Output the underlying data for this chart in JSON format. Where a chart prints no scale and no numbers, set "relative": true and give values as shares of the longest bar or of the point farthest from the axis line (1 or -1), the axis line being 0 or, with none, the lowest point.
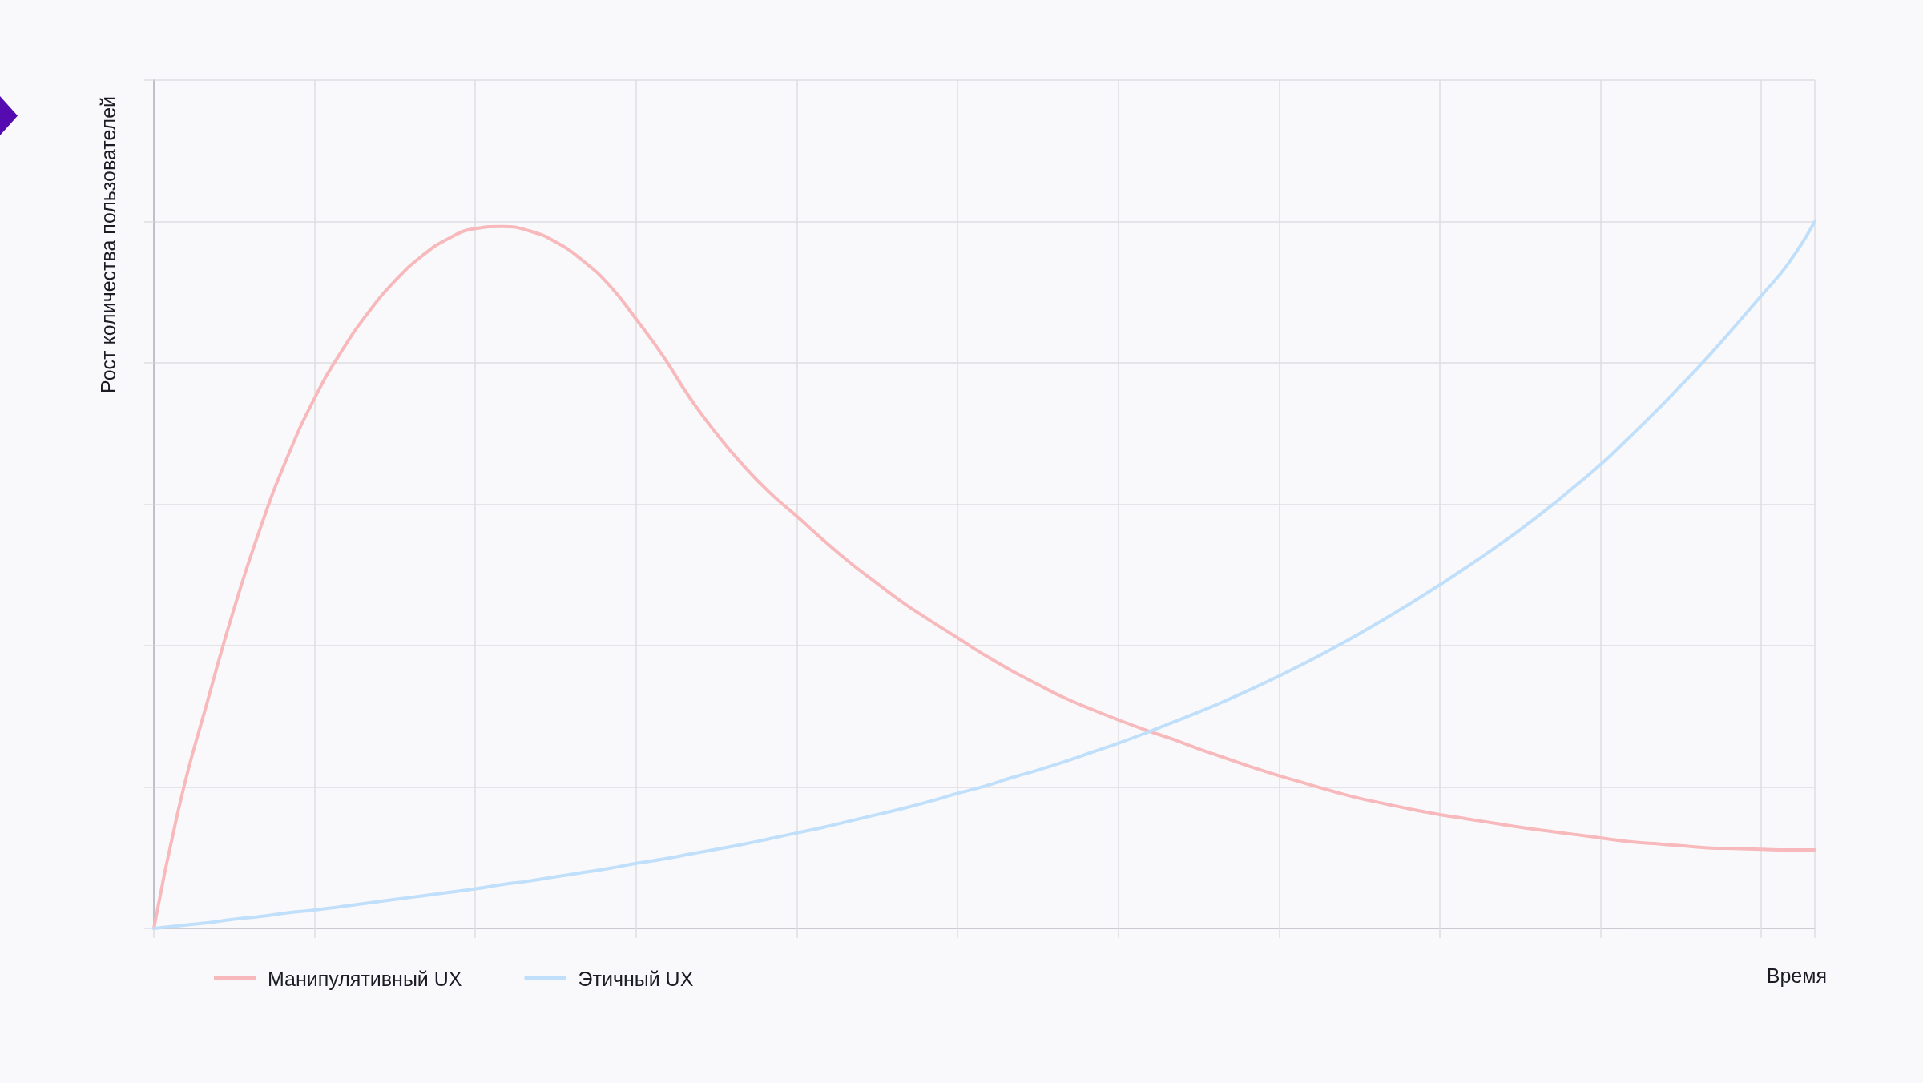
{
  "chart_data": {
    "type": "line",
    "xlabel": "Время",
    "ylabel": "Рост количества пользователей",
    "relative": true,
    "categories": [
      null,
      null,
      null,
      null,
      null,
      null,
      null,
      null,
      null,
      null,
      null,
      null,
      null,
      null,
      null,
      null,
      null,
      null,
      null,
      null,
      null,
      null,
      null,
      null,
      null,
      null,
      null,
      null,
      null,
      null,
      null,
      null,
      null,
      null,
      null,
      null,
      null,
      null,
      null,
      null,
      null,
      null,
      null,
      null,
      null,
      null,
      null,
      null,
      null,
      null,
      null,
      null,
      null,
      null,
      null,
      null,
      null,
      null,
      null,
      null,
      null,
      null,
      null
    ],
    "series": [
      {
        "name": "Манипулятивный UX",
        "color": "#f8b9bc",
        "values": [
          0,
          0.181,
          0.321,
          0.453,
          0.569,
          0.668,
          0.75,
          0.816,
          0.871,
          0.916,
          0.951,
          0.976,
          0.99,
          0.993,
          0.987,
          0.971,
          0.945,
          0.91,
          0.862,
          0.81,
          0.751,
          0.7,
          0.655,
          0.616,
          0.583,
          0.549,
          0.517,
          0.488,
          0.46,
          0.435,
          0.411,
          0.387,
          0.365,
          0.345,
          0.326,
          0.31,
          0.295,
          0.281,
          0.268,
          0.254,
          0.241,
          0.228,
          0.216,
          0.205,
          0.194,
          0.184,
          0.176,
          0.168,
          0.161,
          0.155,
          0.149,
          0.143,
          0.138,
          0.133,
          0.128,
          0.123,
          0.12,
          0.117,
          0.114,
          0.113,
          0.112,
          0.111,
          0.111
        ]
      },
      {
        "name": "Этичный UX",
        "color": "#c0dffa",
        "values": [
          0,
          0.004,
          0.008,
          0.013,
          0.017,
          0.022,
          0.026,
          0.031,
          0.036,
          0.041,
          0.046,
          0.051,
          0.056,
          0.062,
          0.067,
          0.073,
          0.079,
          0.085,
          0.092,
          0.098,
          0.105,
          0.112,
          0.119,
          0.127,
          0.135,
          0.143,
          0.152,
          0.161,
          0.17,
          0.18,
          0.191,
          0.201,
          0.213,
          0.224,
          0.236,
          0.249,
          0.262,
          0.276,
          0.291,
          0.306,
          0.322,
          0.339,
          0.357,
          0.376,
          0.396,
          0.417,
          0.439,
          0.462,
          0.486,
          0.511,
          0.537,
          0.564,
          0.593,
          0.624,
          0.656,
          0.692,
          0.729,
          0.768,
          0.808,
          0.851,
          0.895,
          0.94,
          1
        ]
      }
    ],
    "grid": true,
    "legend": "bottom left"
  }
}
